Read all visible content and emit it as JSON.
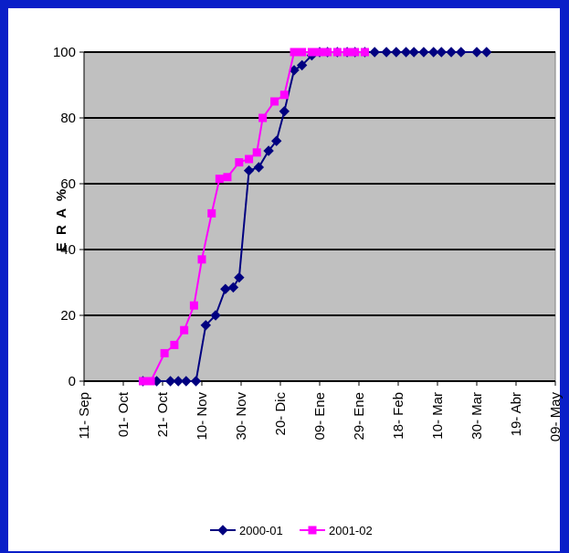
{
  "chart_data": {
    "type": "line",
    "ylabel": "E R A %",
    "ylim": [
      0,
      100
    ],
    "y_ticks": [
      "0",
      "20",
      "40",
      "60",
      "80",
      "100"
    ],
    "x_ticks": [
      "11- Sep",
      "01- Oct",
      "21- Oct",
      "10- Nov",
      "30- Nov",
      "20- Dic",
      "09- Ene",
      "29- Ene",
      "18- Feb",
      "10- Mar",
      "30- Mar",
      "19- Abr",
      "09- May"
    ],
    "grid": true,
    "legend_position": "bottom",
    "series": [
      {
        "name": "2000-01",
        "color": "#000080",
        "marker": "diamond",
        "x": [
          30,
          37,
          44,
          48,
          52,
          57,
          62,
          67,
          72,
          76,
          79,
          84,
          89,
          94,
          98,
          102,
          107,
          111,
          116,
          120,
          124,
          129,
          134,
          138,
          143,
          148,
          154,
          159,
          164,
          168,
          173,
          178,
          182,
          187,
          192,
          200,
          205
        ],
        "values": [
          0,
          0,
          0,
          0,
          0,
          0,
          17,
          20,
          28,
          28.5,
          31.5,
          64,
          65,
          70,
          73,
          82,
          94.5,
          96,
          99,
          100,
          100,
          100,
          100,
          100,
          100,
          100,
          100,
          100,
          100,
          100,
          100,
          100,
          100,
          100,
          100,
          100,
          100
        ]
      },
      {
        "name": "2001-02",
        "color": "#ff00ff",
        "marker": "square",
        "x": [
          30,
          34,
          41,
          46,
          51,
          56,
          60,
          65,
          69,
          73,
          79,
          84,
          88,
          91,
          97,
          102,
          107,
          111,
          116,
          120,
          124,
          129,
          134,
          138,
          143
        ],
        "values": [
          0,
          0,
          8.5,
          11,
          15.5,
          23,
          37,
          51,
          61.5,
          62,
          66.5,
          67.5,
          69.5,
          80,
          85,
          87,
          100,
          100,
          100,
          100,
          100,
          100,
          100,
          100,
          100
        ]
      }
    ]
  }
}
